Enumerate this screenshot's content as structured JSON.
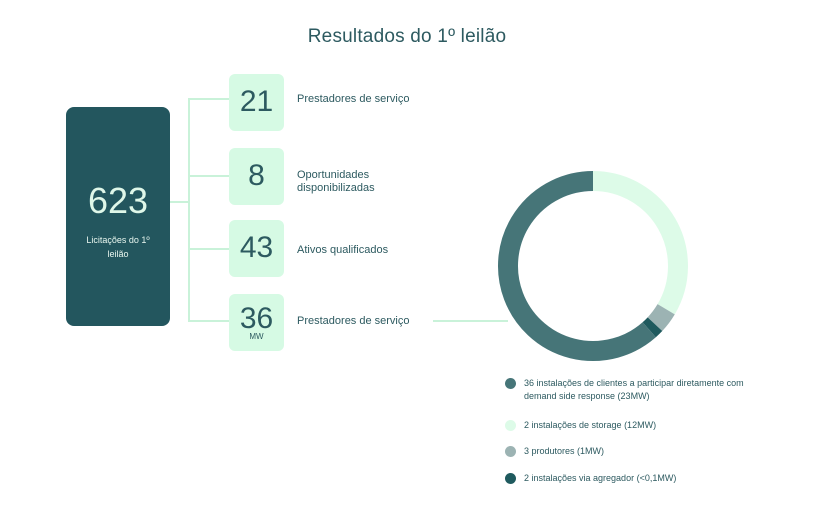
{
  "title": "Resultados do 1º leilão",
  "summary": {
    "value": "623",
    "label": "Licitações do 1º leilão"
  },
  "stats": [
    {
      "value": "21",
      "unit": "",
      "label": "Prestadores de serviço"
    },
    {
      "value": "8",
      "unit": "",
      "label": "Oportunidades disponibilizadas"
    },
    {
      "value": "43",
      "unit": "",
      "label": "Ativos qualificados"
    },
    {
      "value": "36",
      "unit": "MW",
      "label": "Prestadores de serviço"
    }
  ],
  "chart_data": {
    "type": "pie",
    "title": "",
    "categories": [
      "36 instalações de clientes a participar diretamente com demand side response (23MW)",
      "2 instalações de storage (12MW)",
      "3 produtores (1MW)",
      "2 instalações via agregador (<0,1MW)"
    ],
    "values": [
      23,
      12,
      1,
      0.1
    ],
    "colors": [
      "#467578",
      "#ddfbe8",
      "#9cb3b3",
      "#1f5a5e"
    ],
    "legend_position": "bottom"
  }
}
